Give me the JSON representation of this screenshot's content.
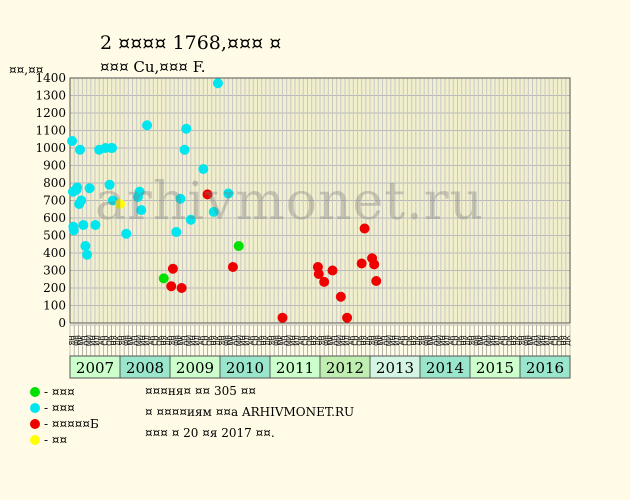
{
  "title_line1": "2 ¤¤¤¤ 1768,¤¤¤ ¤",
  "title_line2": "¤¤¤ Cu,¤¤¤ F.",
  "y_unit_label": "¤¤,¤¤",
  "watermark": "arhivmonet.ru",
  "legend": [
    {
      "label": "- ¤¤¤",
      "color": "#00e000"
    },
    {
      "label": "- ¤¤¤",
      "color": "#00e5ee"
    },
    {
      "label": "- ¤¤¤¤¤Б",
      "color": "#ee0000"
    },
    {
      "label": "- ¤¤",
      "color": "#ffff00"
    }
  ],
  "notes": [
    "¤¤¤ня¤ ¤¤ 305 ¤¤",
    "¤ ¤¤¤¤иям ¤¤а ARHIVMONET.RU",
    "¤¤¤ ¤ 20 ¤я 2017 ¤¤."
  ],
  "chart_data": {
    "type": "scatter",
    "y_ticks": [
      0,
      100,
      200,
      300,
      400,
      500,
      600,
      700,
      800,
      900,
      1000,
      1100,
      1200,
      1300,
      1400
    ],
    "ylim": [
      0,
      1400
    ],
    "grid": true,
    "years": [
      {
        "label": "2007",
        "color": "#ccffcc"
      },
      {
        "label": "2008",
        "color": "#99e6cc"
      },
      {
        "label": "2009",
        "color": "#ccffcc"
      },
      {
        "label": "2010",
        "color": "#99e6cc"
      },
      {
        "label": "2011",
        "color": "#ccffcc"
      },
      {
        "label": "2012",
        "color": "#bfeeb0"
      },
      {
        "label": "2013",
        "color": "#d4f5e4"
      },
      {
        "label": "2014",
        "color": "#99e6cc"
      },
      {
        "label": "2015",
        "color": "#ccffcc"
      },
      {
        "label": "2016",
        "color": "#99e6cc"
      }
    ],
    "month_labels": [
      "ЯН",
      "ФВ",
      "МР",
      "АП",
      "МЙ",
      "ИН",
      "ИЛ",
      "АВ",
      "СН",
      "ОК",
      "НЯ",
      "ДК"
    ],
    "x_unit": "months since Jan 2007",
    "series": [
      {
        "color": "#00e000",
        "points": [
          [
            22,
            255
          ],
          [
            40,
            440
          ]
        ]
      },
      {
        "color": "#00e5ee",
        "points": [
          [
            0,
            1040
          ],
          [
            0.2,
            750
          ],
          [
            0.3,
            550
          ],
          [
            0.4,
            530
          ],
          [
            1,
            760
          ],
          [
            1.2,
            775
          ],
          [
            1.7,
            680
          ],
          [
            1.9,
            990
          ],
          [
            2.2,
            700
          ],
          [
            2.7,
            560
          ],
          [
            3.2,
            440
          ],
          [
            3.6,
            390
          ],
          [
            4.2,
            770
          ],
          [
            5.6,
            560
          ],
          [
            6.5,
            990
          ],
          [
            8,
            1000
          ],
          [
            9,
            790
          ],
          [
            9.4,
            1000
          ],
          [
            9.6,
            1000
          ],
          [
            9.8,
            700
          ],
          [
            13,
            510
          ],
          [
            15.8,
            720
          ],
          [
            16.2,
            750
          ],
          [
            16.6,
            645
          ],
          [
            18,
            1130
          ],
          [
            25,
            520
          ],
          [
            26,
            710
          ],
          [
            27,
            990
          ],
          [
            27.4,
            1110
          ],
          [
            28.5,
            590
          ],
          [
            31.5,
            880
          ],
          [
            34,
            635
          ],
          [
            35,
            1370
          ],
          [
            37.5,
            740
          ]
        ]
      },
      {
        "color": "#ee0000",
        "points": [
          [
            23.8,
            210
          ],
          [
            24.2,
            310
          ],
          [
            26.3,
            200
          ],
          [
            32.5,
            735
          ],
          [
            38.6,
            320
          ],
          [
            50.5,
            30
          ],
          [
            59,
            320
          ],
          [
            59.2,
            280
          ],
          [
            60.5,
            235
          ],
          [
            62.5,
            300
          ],
          [
            64.5,
            150
          ],
          [
            66,
            30
          ],
          [
            69.5,
            340
          ],
          [
            70.2,
            540
          ],
          [
            72,
            370
          ],
          [
            72.5,
            335
          ],
          [
            73,
            240
          ]
        ]
      },
      {
        "color": "#ffff00",
        "points": [
          [
            11.5,
            680
          ]
        ]
      }
    ]
  }
}
